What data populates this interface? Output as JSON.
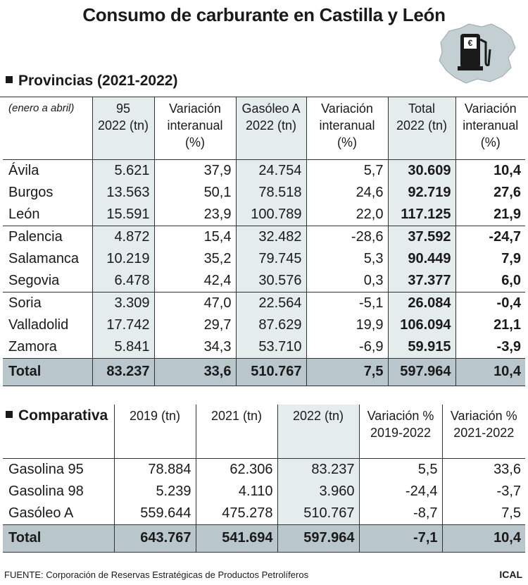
{
  "title": "Consumo de carburante en Castilla y León",
  "provincias": {
    "section_title": "Provincias (2021-2022)",
    "note": "(enero a abril)",
    "headers": [
      "95\n2022 (tn)",
      "Variación\ninteranual\n(%)",
      "Gasóleo A\n2022 (tn)",
      "Variación\ninteranual\n(%)",
      "Total\n2022 (tn)",
      "Variación\ninteranual\n(%)"
    ],
    "rows": [
      [
        "Ávila",
        "5.621",
        "37,9",
        "24.754",
        "5,7",
        "30.609",
        "10,4"
      ],
      [
        "Burgos",
        "13.563",
        "50,1",
        "78.518",
        "24,6",
        "92.719",
        "27,6"
      ],
      [
        "León",
        "15.591",
        "23,9",
        "100.789",
        "22,0",
        "117.125",
        "21,9"
      ],
      [
        "Palencia",
        "4.872",
        "15,4",
        "32.482",
        "-28,6",
        "37.592",
        "-24,7"
      ],
      [
        "Salamanca",
        "10.219",
        "35,2",
        "79.745",
        "5,3",
        "90.449",
        "7,9"
      ],
      [
        "Segovia",
        "6.478",
        "42,4",
        "30.576",
        "0,3",
        "37.377",
        "6,0"
      ],
      [
        "Soria",
        "3.309",
        "47,0",
        "22.564",
        "-5,1",
        "26.084",
        "-0,4"
      ],
      [
        "Valladolid",
        "17.742",
        "29,7",
        "87.629",
        "19,9",
        "106.094",
        "21,1"
      ],
      [
        "Zamora",
        "5.841",
        "34,3",
        "53.710",
        "-6,9",
        "59.915",
        "-3,9"
      ]
    ],
    "total": [
      "Total",
      "83.237",
      "33,6",
      "510.767",
      "7,5",
      "597.964",
      "10,4"
    ]
  },
  "comparativa": {
    "section_title": "Comparativa",
    "headers": [
      "2019 (tn)",
      "2021 (tn)",
      "2022 (tn)",
      "Variación %\n2019-2022",
      "Variación %\n2021-2022"
    ],
    "rows": [
      [
        "Gasolina 95",
        "78.884",
        "62.306",
        "83.237",
        "5,5",
        "33,6"
      ],
      [
        "Gasolina 98",
        "5.239",
        "4.110",
        "3.960",
        "-24,4",
        "-3,7"
      ],
      [
        "Gasóleo A",
        "559.644",
        "475.278",
        "510.767",
        "-8,7",
        "7,5"
      ]
    ],
    "total": [
      "Total",
      "643.767",
      "541.694",
      "597.964",
      "-7,1",
      "10,4"
    ]
  },
  "icon": "fuel-pump-euro-map-icon",
  "source": "FUENTE: Corporación de Reservas Estratégicas de Productos Petrolíferos",
  "brand": "ICAL"
}
